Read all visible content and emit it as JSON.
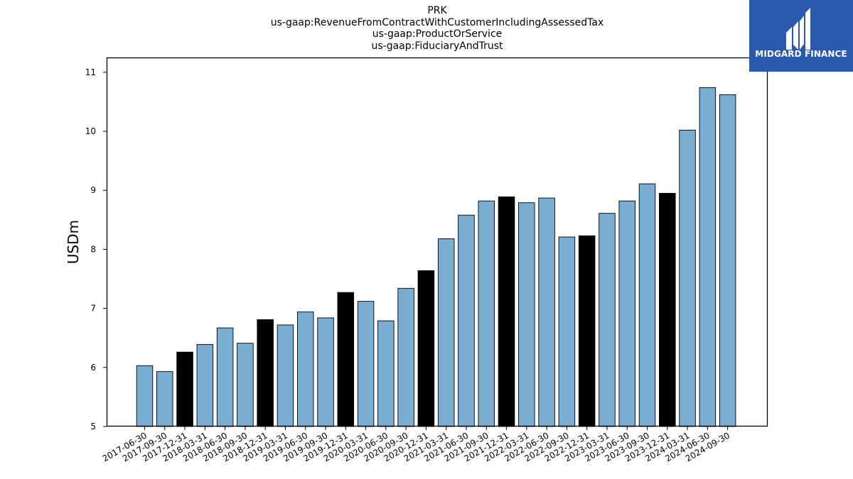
{
  "brand": {
    "name": "MIDGARD FINANCE",
    "bg_color": "#2b5aad"
  },
  "chart_data": {
    "type": "bar",
    "title_lines": [
      "PRK",
      "us-gaap:RevenueFromContractWithCustomerIncludingAssessedTax",
      "us-gaap:ProductOrService",
      "us-gaap:FiduciaryAndTrust"
    ],
    "xlabel": "",
    "ylabel": "USDm",
    "ylim": [
      5,
      11.25
    ],
    "yticks": [
      5,
      6,
      7,
      8,
      9,
      10,
      11
    ],
    "grid": false,
    "colors": {
      "quarter": "#7aadd2",
      "year_end": "#000000"
    },
    "categories": [
      "2017-06-30",
      "2017-09-30",
      "2017-12-31",
      "2018-03-31",
      "2018-06-30",
      "2018-09-30",
      "2018-12-31",
      "2019-03-31",
      "2019-06-30",
      "2019-09-30",
      "2019-12-31",
      "2020-03-31",
      "2020-06-30",
      "2020-09-30",
      "2020-12-31",
      "2021-03-31",
      "2021-06-30",
      "2021-09-30",
      "2021-12-31",
      "2022-03-31",
      "2022-06-30",
      "2022-09-30",
      "2022-12-31",
      "2023-03-31",
      "2023-06-30",
      "2023-09-30",
      "2023-12-31",
      "2024-03-31",
      "2024-06-30",
      "2024-09-30"
    ],
    "values": [
      6.03,
      5.93,
      6.26,
      6.39,
      6.67,
      6.41,
      6.81,
      6.72,
      6.94,
      6.84,
      7.27,
      7.12,
      6.79,
      7.34,
      7.64,
      8.18,
      8.58,
      8.82,
      8.89,
      8.79,
      8.87,
      8.21,
      8.23,
      8.61,
      8.82,
      9.11,
      8.95,
      10.02,
      10.74,
      10.62
    ],
    "year_end": [
      false,
      false,
      true,
      false,
      false,
      false,
      true,
      false,
      false,
      false,
      true,
      false,
      false,
      false,
      true,
      false,
      false,
      false,
      true,
      false,
      false,
      false,
      true,
      false,
      false,
      false,
      true,
      false,
      false,
      false
    ]
  }
}
